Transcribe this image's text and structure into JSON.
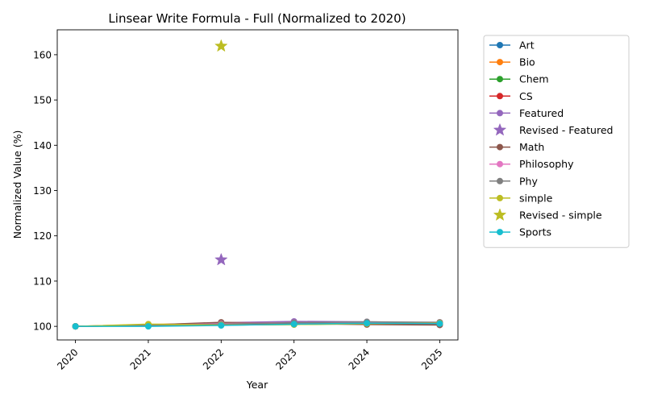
{
  "chart_data": {
    "type": "line",
    "title": "Linsear Write Formula - Full (Normalized to 2020)",
    "xlabel": "Year",
    "ylabel": "Normalized Value (%)",
    "x": [
      2020,
      2021,
      2022,
      2023,
      2024,
      2025
    ],
    "xlim": [
      2019.75,
      2025.25
    ],
    "ylim": [
      97,
      165.5
    ],
    "yticks": [
      100,
      110,
      120,
      130,
      140,
      150,
      160
    ],
    "grid": false,
    "legend_position": "outside-right",
    "x_tick_rotation": 45,
    "series": [
      {
        "name": "Art",
        "color": "#1f77b4",
        "marker": "circle",
        "values": [
          100,
          100.2,
          100.4,
          100.6,
          100.7,
          100.8
        ]
      },
      {
        "name": "Bio",
        "color": "#ff7f0e",
        "marker": "circle",
        "values": [
          100,
          100.4,
          100.7,
          100.9,
          100.9,
          100.8
        ]
      },
      {
        "name": "Chem",
        "color": "#2ca02c",
        "marker": "circle",
        "values": [
          100,
          100.1,
          100.3,
          100.4,
          100.6,
          100.7
        ]
      },
      {
        "name": "CS",
        "color": "#d62728",
        "marker": "circle",
        "values": [
          100,
          100.2,
          100.5,
          100.6,
          100.6,
          100.5
        ]
      },
      {
        "name": "Featured",
        "color": "#9467bd",
        "marker": "circle",
        "values": [
          100,
          100.3,
          100.8,
          101.1,
          101.0,
          100.8
        ]
      },
      {
        "name": "Revised - Featured",
        "color": "#9467bd",
        "marker": "star",
        "points": [
          [
            2022,
            114.7
          ]
        ]
      },
      {
        "name": "Math",
        "color": "#8c564b",
        "marker": "circle",
        "values": [
          100,
          100.3,
          100.9,
          100.6,
          100.4,
          100.3
        ]
      },
      {
        "name": "Philosophy",
        "color": "#e377c2",
        "marker": "circle",
        "values": [
          100,
          100.2,
          100.6,
          100.8,
          100.9,
          100.9
        ]
      },
      {
        "name": "Phy",
        "color": "#7f7f7f",
        "marker": "circle",
        "values": [
          100,
          100.2,
          100.5,
          100.8,
          101.0,
          100.9
        ]
      },
      {
        "name": "simple",
        "color": "#bcbd22",
        "marker": "circle",
        "values": [
          100,
          100.5,
          100.3,
          100.4,
          100.6,
          100.7
        ]
      },
      {
        "name": "Revised - simple",
        "color": "#bcbd22",
        "marker": "star",
        "points": [
          [
            2022,
            161.9
          ]
        ]
      },
      {
        "name": "Sports",
        "color": "#17becf",
        "marker": "circle",
        "values": [
          100,
          100.0,
          100.2,
          100.5,
          100.7,
          100.6
        ]
      }
    ]
  }
}
